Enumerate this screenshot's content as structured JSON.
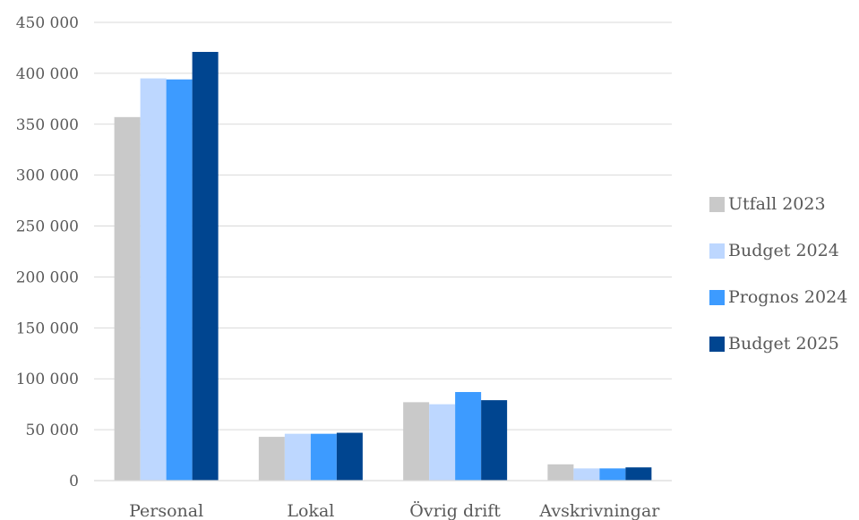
{
  "chart_data": {
    "type": "bar",
    "categories": [
      "Personal",
      "Lokal",
      "Övrig drift",
      "Avskrivningar"
    ],
    "series": [
      {
        "name": "Utfall 2023",
        "color": "#c9c9c9",
        "values": [
          357000,
          43000,
          77000,
          16000
        ]
      },
      {
        "name": "Budget 2024",
        "color": "#bdd7ff",
        "values": [
          395000,
          46000,
          75000,
          12000
        ]
      },
      {
        "name": "Prognos 2024",
        "color": "#3d9bff",
        "values": [
          394000,
          46000,
          87000,
          12000
        ]
      },
      {
        "name": "Budget 2025",
        "color": "#004590",
        "values": [
          421000,
          47000,
          79000,
          13000
        ]
      }
    ],
    "ylim": [
      0,
      450000
    ],
    "yticks": [
      0,
      50000,
      100000,
      150000,
      200000,
      250000,
      300000,
      350000,
      400000,
      450000
    ],
    "ytick_labels": [
      "0",
      "50 000",
      "100 000",
      "150 000",
      "200 000",
      "250 000",
      "300 000",
      "350 000",
      "400 000",
      "450 000"
    ],
    "grid": true,
    "legend_position": "right"
  }
}
